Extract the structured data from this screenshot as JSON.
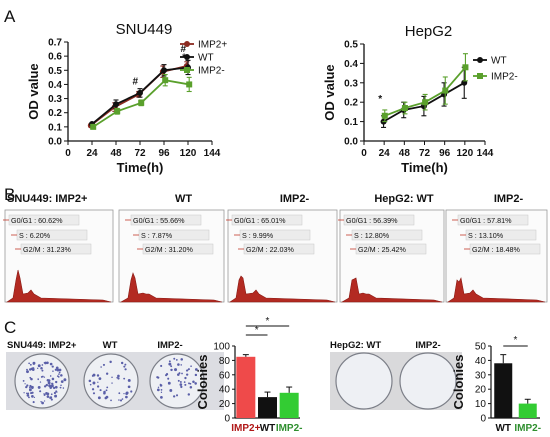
{
  "panels": {
    "A": {
      "letter": "A"
    },
    "B": {
      "letter": "B"
    },
    "C": {
      "letter": "C"
    }
  },
  "chart_data": [
    {
      "type": "line",
      "title": "SNU449",
      "xlabel": "Time(h)",
      "ylabel": "OD value",
      "x": [
        24,
        48,
        72,
        96,
        120
      ],
      "xticks": [
        "0",
        "24",
        "48",
        "72",
        "96",
        "120",
        "144"
      ],
      "yticks": [
        "0.0",
        "0.1",
        "0.2",
        "0.3",
        "0.4",
        "0.5",
        "0.6",
        "0.7"
      ],
      "xlim": [
        0,
        144
      ],
      "ylim": [
        0,
        0.7
      ],
      "legend": "top-right",
      "series": [
        {
          "name": "IMP2+",
          "color": "#8b2a20",
          "marker": "circle",
          "values": [
            0.11,
            0.24,
            0.33,
            0.49,
            0.53
          ],
          "errors": [
            0.01,
            0.03,
            0.02,
            0.04,
            0.03
          ]
        },
        {
          "name": "WT",
          "color": "#111111",
          "marker": "circle",
          "values": [
            0.12,
            0.26,
            0.34,
            0.5,
            0.52
          ],
          "errors": [
            0.01,
            0.03,
            0.03,
            0.04,
            0.05
          ]
        },
        {
          "name": "IMP2-",
          "color": "#5aa02c",
          "marker": "square",
          "values": [
            0.1,
            0.21,
            0.27,
            0.43,
            0.4
          ],
          "errors": [
            0.01,
            0.02,
            0.02,
            0.04,
            0.05
          ]
        }
      ],
      "annotations": [
        {
          "text": "#",
          "x": 72,
          "y": 0.4
        },
        {
          "text": "#",
          "x": 120,
          "y": 0.63
        },
        {
          "text": "*",
          "x": 120,
          "y": 0.57
        }
      ]
    },
    {
      "type": "line",
      "title": "HepG2",
      "xlabel": "Time(h)",
      "ylabel": "OD value",
      "x": [
        24,
        48,
        72,
        96,
        120
      ],
      "xticks": [
        "0",
        "24",
        "48",
        "72",
        "96",
        "120",
        "144"
      ],
      "yticks": [
        "0.0",
        "0.1",
        "0.2",
        "0.3",
        "0.4",
        "0.5"
      ],
      "xlim": [
        0,
        144
      ],
      "ylim": [
        0,
        0.5
      ],
      "legend": "top-right",
      "series": [
        {
          "name": "WT",
          "color": "#111111",
          "marker": "circle",
          "values": [
            0.1,
            0.16,
            0.18,
            0.24,
            0.3
          ],
          "errors": [
            0.03,
            0.04,
            0.05,
            0.06,
            0.08
          ]
        },
        {
          "name": "IMP2-",
          "color": "#5aa02c",
          "marker": "square",
          "values": [
            0.13,
            0.17,
            0.2,
            0.26,
            0.38
          ],
          "errors": [
            0.03,
            0.03,
            0.04,
            0.07,
            0.07
          ]
        }
      ],
      "annotations": [
        {
          "text": "*",
          "x": 24,
          "y": 0.2
        }
      ]
    },
    {
      "type": "histogram",
      "title": "SNU449: IMP2+",
      "phases": [
        "G0/G1 : 60.62%",
        "S : 6.20%",
        "G2/M : 31.23%"
      ]
    },
    {
      "type": "histogram",
      "title": "WT",
      "phases": [
        "G0/G1 : 55.66%",
        "S : 7.87%",
        "G2/M : 31.20%"
      ]
    },
    {
      "type": "histogram",
      "title": "IMP2-",
      "phases": [
        "G0/G1 : 65.01%",
        "S : 9.99%",
        "G2/M : 22.03%"
      ]
    },
    {
      "type": "histogram",
      "title": "HepG2:  WT",
      "phases": [
        "G0/G1 : 56.39%",
        "S : 12.80%",
        "G2/M : 25.42%"
      ]
    },
    {
      "type": "histogram",
      "title": "IMP2-",
      "phases": [
        "G0/G1 : 57.81%",
        "S : 13.10%",
        "G2/M : 18.48%"
      ]
    },
    {
      "type": "bar",
      "ylabel": "Colonies",
      "categories": [
        "IMP2+",
        "WT",
        "IMP2-"
      ],
      "category_colors": [
        "#b01818",
        "#111111",
        "#2f8f2f"
      ],
      "values": [
        85,
        29,
        35
      ],
      "errors": [
        3,
        7,
        8
      ],
      "bar_colors": [
        "#ef4a4a",
        "#111111",
        "#33cc33"
      ],
      "ylim": [
        0,
        100
      ],
      "yticks": [
        "0",
        "20",
        "40",
        "60",
        "80",
        "100"
      ],
      "significance": [
        "*",
        "*"
      ]
    },
    {
      "type": "bar",
      "ylabel": "Colonies",
      "categories": [
        "WT",
        "IMP2-"
      ],
      "category_colors": [
        "#111111",
        "#2f8f2f"
      ],
      "values": [
        38,
        10
      ],
      "errors": [
        6,
        3
      ],
      "bar_colors": [
        "#111111",
        "#33cc33"
      ],
      "ylim": [
        0,
        50
      ],
      "yticks": [
        "0",
        "10",
        "20",
        "30",
        "40",
        "50"
      ],
      "significance": [
        "*"
      ]
    }
  ],
  "colony_panels": {
    "snu_labels": [
      "SNU449: IMP2+",
      "WT",
      "IMP2-"
    ],
    "hep_labels": [
      "HepG2: WT",
      "IMP2-"
    ]
  }
}
